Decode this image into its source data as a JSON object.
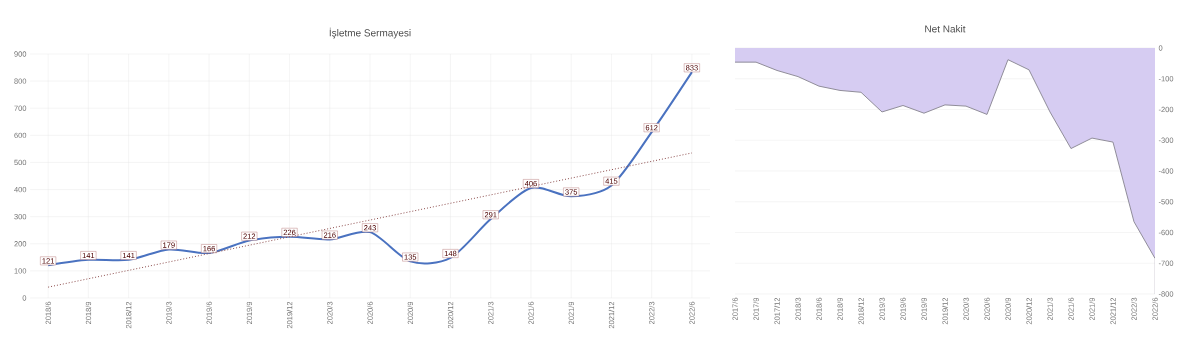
{
  "chart_data": [
    {
      "type": "line",
      "title": "İşletme Sermayesi",
      "categories": [
        "2018/6",
        "2018/9",
        "2018/12",
        "2019/3",
        "2019/6",
        "2019/9",
        "2019/12",
        "2020/3",
        "2020/6",
        "2020/9",
        "2020/12",
        "2021/3",
        "2021/6",
        "2021/9",
        "2021/12",
        "2022/3",
        "2022/6"
      ],
      "series": [
        {
          "color": "#4a72c0",
          "values": [
            121,
            141,
            141,
            179,
            166,
            212,
            226,
            216,
            243,
            135,
            148,
            291,
            406,
            375,
            415,
            612,
            833
          ],
          "value_labels": [
            "121",
            "141",
            "141",
            "179",
            "166",
            "212",
            "226",
            "216",
            "243",
            "135",
            "148",
            "291",
            "406",
            "375",
            "415",
            "612",
            "833"
          ]
        },
        {
          "type": "line",
          "line_style": "dotted",
          "color": "#8b4a4a",
          "values": [
            40,
            null,
            null,
            null,
            null,
            null,
            null,
            null,
            null,
            null,
            null,
            null,
            null,
            null,
            null,
            null,
            535
          ]
        }
      ],
      "ylim": [
        0,
        900
      ],
      "yticks": [
        0,
        100,
        200,
        300,
        400,
        500,
        600,
        700,
        800,
        900
      ],
      "grid": true
    },
    {
      "type": "area",
      "title": "Net Nakit",
      "categories": [
        "2017/6",
        "2017/9",
        "2017/12",
        "2018/3",
        "2018/6",
        "2018/9",
        "2018/12",
        "2019/3",
        "2019/6",
        "2019/9",
        "2019/12",
        "2020/3",
        "2020/6",
        "2020/9",
        "2020/12",
        "2021/3",
        "2021/6",
        "2021/9",
        "2021/12",
        "2022/3",
        "2022/6"
      ],
      "series": [
        {
          "color": "#d6ccf2",
          "values": [
            -46,
            -46,
            -73,
            -93,
            -124,
            -138,
            -144,
            -208,
            -187,
            -212,
            -185,
            -189,
            -216,
            -38,
            -71,
            -208,
            -327,
            -293,
            -306,
            -565,
            -684
          ]
        }
      ],
      "ylim": [
        -800,
        0
      ],
      "yticks": [
        0,
        -100,
        -200,
        -300,
        -400,
        -500,
        -600,
        -700,
        -800
      ],
      "grid": "y"
    }
  ]
}
